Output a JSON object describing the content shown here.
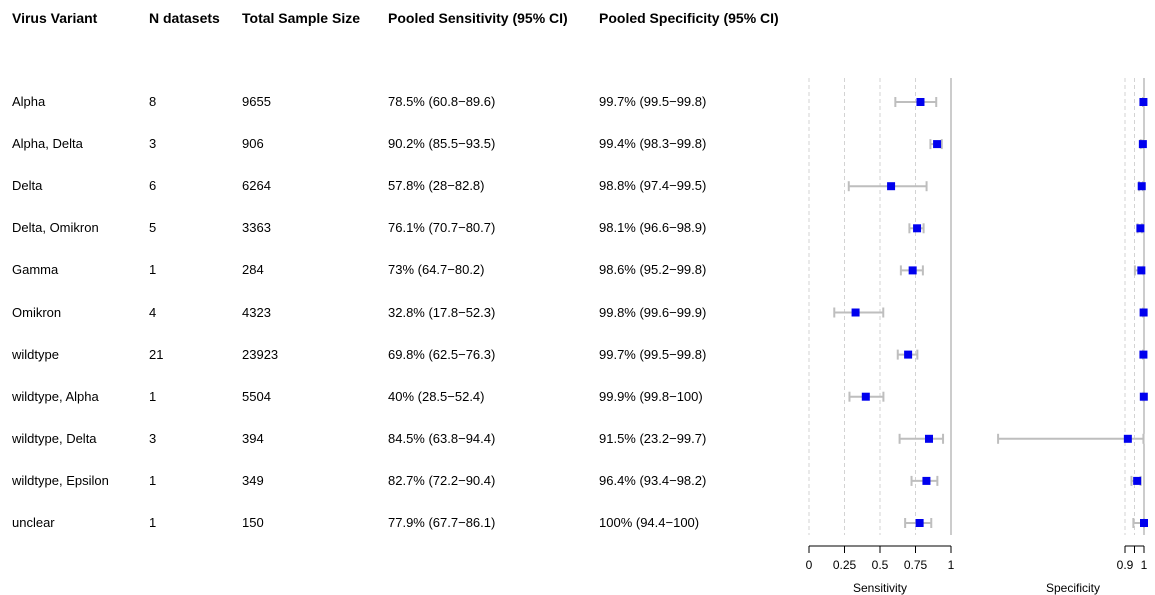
{
  "table": {
    "headers": [
      "Virus Variant",
      "N datasets",
      "Total Sample Size",
      "Pooled Sensitivity (95% CI)",
      "Pooled Specificity (95% CI)"
    ],
    "rows": [
      {
        "variant": "Alpha",
        "n": "8",
        "size": "9655",
        "sens": "78.5% (60.8−89.6)",
        "spec": "99.7% (99.5−99.8)"
      },
      {
        "variant": "Alpha, Delta",
        "n": "3",
        "size": "906",
        "sens": "90.2% (85.5−93.5)",
        "spec": "99.4% (98.3−99.8)"
      },
      {
        "variant": "Delta",
        "n": "6",
        "size": "6264",
        "sens": "57.8% (28−82.8)",
        "spec": "98.8% (97.4−99.5)"
      },
      {
        "variant": "Delta, Omikron",
        "n": "5",
        "size": "3363",
        "sens": "76.1% (70.7−80.7)",
        "spec": "98.1% (96.6−98.9)"
      },
      {
        "variant": "Gamma",
        "n": "1",
        "size": "284",
        "sens": "73% (64.7−80.2)",
        "spec": "98.6% (95.2−99.8)"
      },
      {
        "variant": "Omikron",
        "n": "4",
        "size": "4323",
        "sens": "32.8% (17.8−52.3)",
        "spec": "99.8% (99.6−99.9)"
      },
      {
        "variant": "wildtype",
        "n": "21",
        "size": "23923",
        "sens": "69.8% (62.5−76.3)",
        "spec": "99.7% (99.5−99.8)"
      },
      {
        "variant": "wildtype, Alpha",
        "n": "1",
        "size": "5504",
        "sens": "40% (28.5−52.4)",
        "spec": "99.9% (99.8−100)"
      },
      {
        "variant": "wildtype, Delta",
        "n": "3",
        "size": "394",
        "sens": "84.5% (63.8−94.4)",
        "spec": "91.5% (23.2−99.7)"
      },
      {
        "variant": "wildtype, Epsilon",
        "n": "1",
        "size": "349",
        "sens": "82.7% (72.2−90.4)",
        "spec": "96.4% (93.4−98.2)"
      },
      {
        "variant": "unclear",
        "n": "1",
        "size": "150",
        "sens": "77.9% (67.7−86.1)",
        "spec": "100% (94.4−100)"
      }
    ]
  },
  "chart_data": [
    {
      "type": "scatter",
      "xlabel": "Sensitivity",
      "xlim": [
        0,
        1
      ],
      "xticks": [
        0,
        0.25,
        0.5,
        0.75,
        1
      ],
      "xtick_labels": [
        "0",
        "0.25",
        "0.5",
        "0.75",
        "1"
      ],
      "grid": "dashed vertical lines at 0.25, 0.5, 0.75; solid line at 1",
      "categories": [
        "Alpha",
        "Alpha, Delta",
        "Delta",
        "Delta, Omikron",
        "Gamma",
        "Omikron",
        "wildtype",
        "wildtype, Alpha",
        "wildtype, Delta",
        "wildtype, Epsilon",
        "unclear"
      ],
      "estimate": [
        0.785,
        0.902,
        0.578,
        0.761,
        0.73,
        0.328,
        0.698,
        0.4,
        0.845,
        0.827,
        0.779
      ],
      "lower": [
        0.608,
        0.855,
        0.28,
        0.707,
        0.647,
        0.178,
        0.625,
        0.285,
        0.638,
        0.722,
        0.677
      ],
      "upper": [
        0.896,
        0.935,
        0.828,
        0.807,
        0.802,
        0.523,
        0.763,
        0.524,
        0.944,
        0.904,
        0.861
      ]
    },
    {
      "type": "scatter",
      "xlabel": "Specificity",
      "xlim": [
        0.9,
        1
      ],
      "xticks": [
        0.9,
        0.95,
        1
      ],
      "xtick_labels": [
        "0.9",
        "",
        "1"
      ],
      "grid": "dashed vertical line at 0.95; solid line at 1",
      "categories": [
        "Alpha",
        "Alpha, Delta",
        "Delta",
        "Delta, Omikron",
        "Gamma",
        "Omikron",
        "wildtype",
        "wildtype, Alpha",
        "wildtype, Delta",
        "wildtype, Epsilon",
        "unclear"
      ],
      "estimate": [
        0.997,
        0.994,
        0.988,
        0.981,
        0.986,
        0.998,
        0.997,
        0.999,
        0.915,
        0.964,
        1.0
      ],
      "lower": [
        0.995,
        0.983,
        0.974,
        0.966,
        0.952,
        0.996,
        0.995,
        0.998,
        0.232,
        0.934,
        0.944
      ],
      "upper": [
        0.998,
        0.998,
        0.995,
        0.989,
        0.998,
        0.999,
        0.998,
        1.0,
        0.997,
        0.982,
        1.0
      ]
    }
  ],
  "colors": {
    "point": "#0000ee",
    "ci": "#bebebe",
    "grid": "#d3d3d3"
  }
}
